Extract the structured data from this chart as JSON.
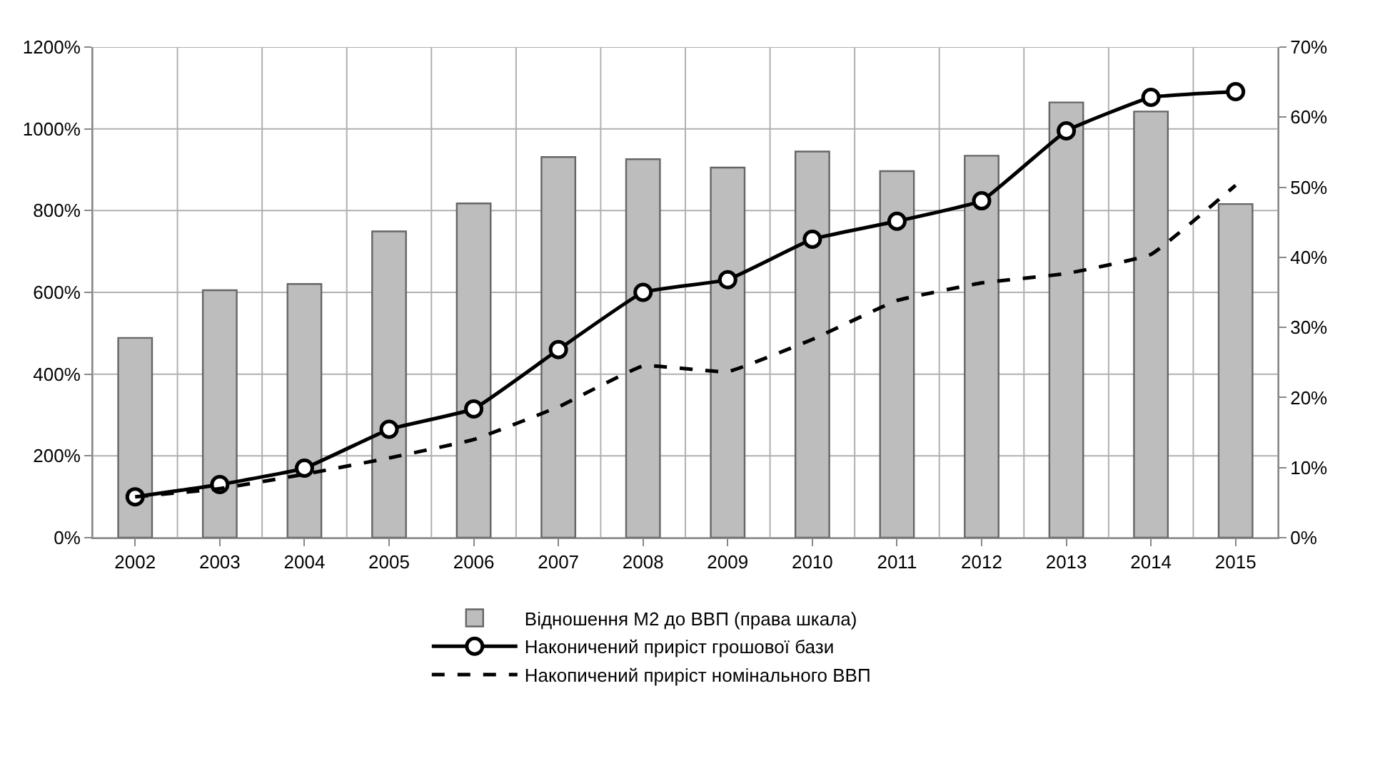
{
  "chart_data": {
    "type": "bar",
    "categories": [
      "2002",
      "2003",
      "2004",
      "2005",
      "2006",
      "2007",
      "2008",
      "2009",
      "2010",
      "2011",
      "2012",
      "2013",
      "2014",
      "2015"
    ],
    "series": [
      {
        "name": "Відношення М2 до ВВП (права шкала)",
        "axis": "y2",
        "color": "#bdbdbd",
        "values": [
          28.5,
          35.3,
          36.2,
          43.7,
          47.7,
          54.3,
          54,
          52.8,
          55.1,
          52.3,
          54.5,
          62.1,
          60.8,
          47.6
        ]
      },
      {
        "name": "Наконичений приріст грошової бази",
        "type": "line",
        "marker": "circle",
        "line_style": "solid",
        "color": "#000000",
        "values": [
          100,
          130,
          170,
          265,
          315,
          460,
          600,
          631,
          730,
          774,
          824,
          995,
          1077,
          1091
        ]
      },
      {
        "name": "Накопичений приріст номінального ВВП",
        "type": "line",
        "marker": "none",
        "line_style": "dashed",
        "color": "#000000",
        "values": [
          100,
          120,
          155,
          195,
          240,
          320,
          420,
          406,
          485,
          580,
          623,
          646,
          693,
          862
        ]
      }
    ],
    "ylim": [
      0,
      1200
    ],
    "yticks": [
      {
        "value": 0,
        "label": "0%"
      },
      {
        "value": 200,
        "label": "200%"
      },
      {
        "value": 400,
        "label": "400%"
      },
      {
        "value": 600,
        "label": "600%"
      },
      {
        "value": 800,
        "label": "800%"
      },
      {
        "value": 1000,
        "label": "1000%"
      },
      {
        "value": 1200,
        "label": "1200%"
      }
    ],
    "y2lim": [
      0,
      70
    ],
    "y2ticks": [
      {
        "value": 0,
        "label": "0%"
      },
      {
        "value": 10,
        "label": "10%"
      },
      {
        "value": 20,
        "label": "20%"
      },
      {
        "value": 30,
        "label": "30%"
      },
      {
        "value": 40,
        "label": "40%"
      },
      {
        "value": 50,
        "label": "50%"
      },
      {
        "value": 60,
        "label": "60%"
      },
      {
        "value": 70,
        "label": "70%"
      }
    ],
    "grid": true,
    "legend": "bottom"
  }
}
